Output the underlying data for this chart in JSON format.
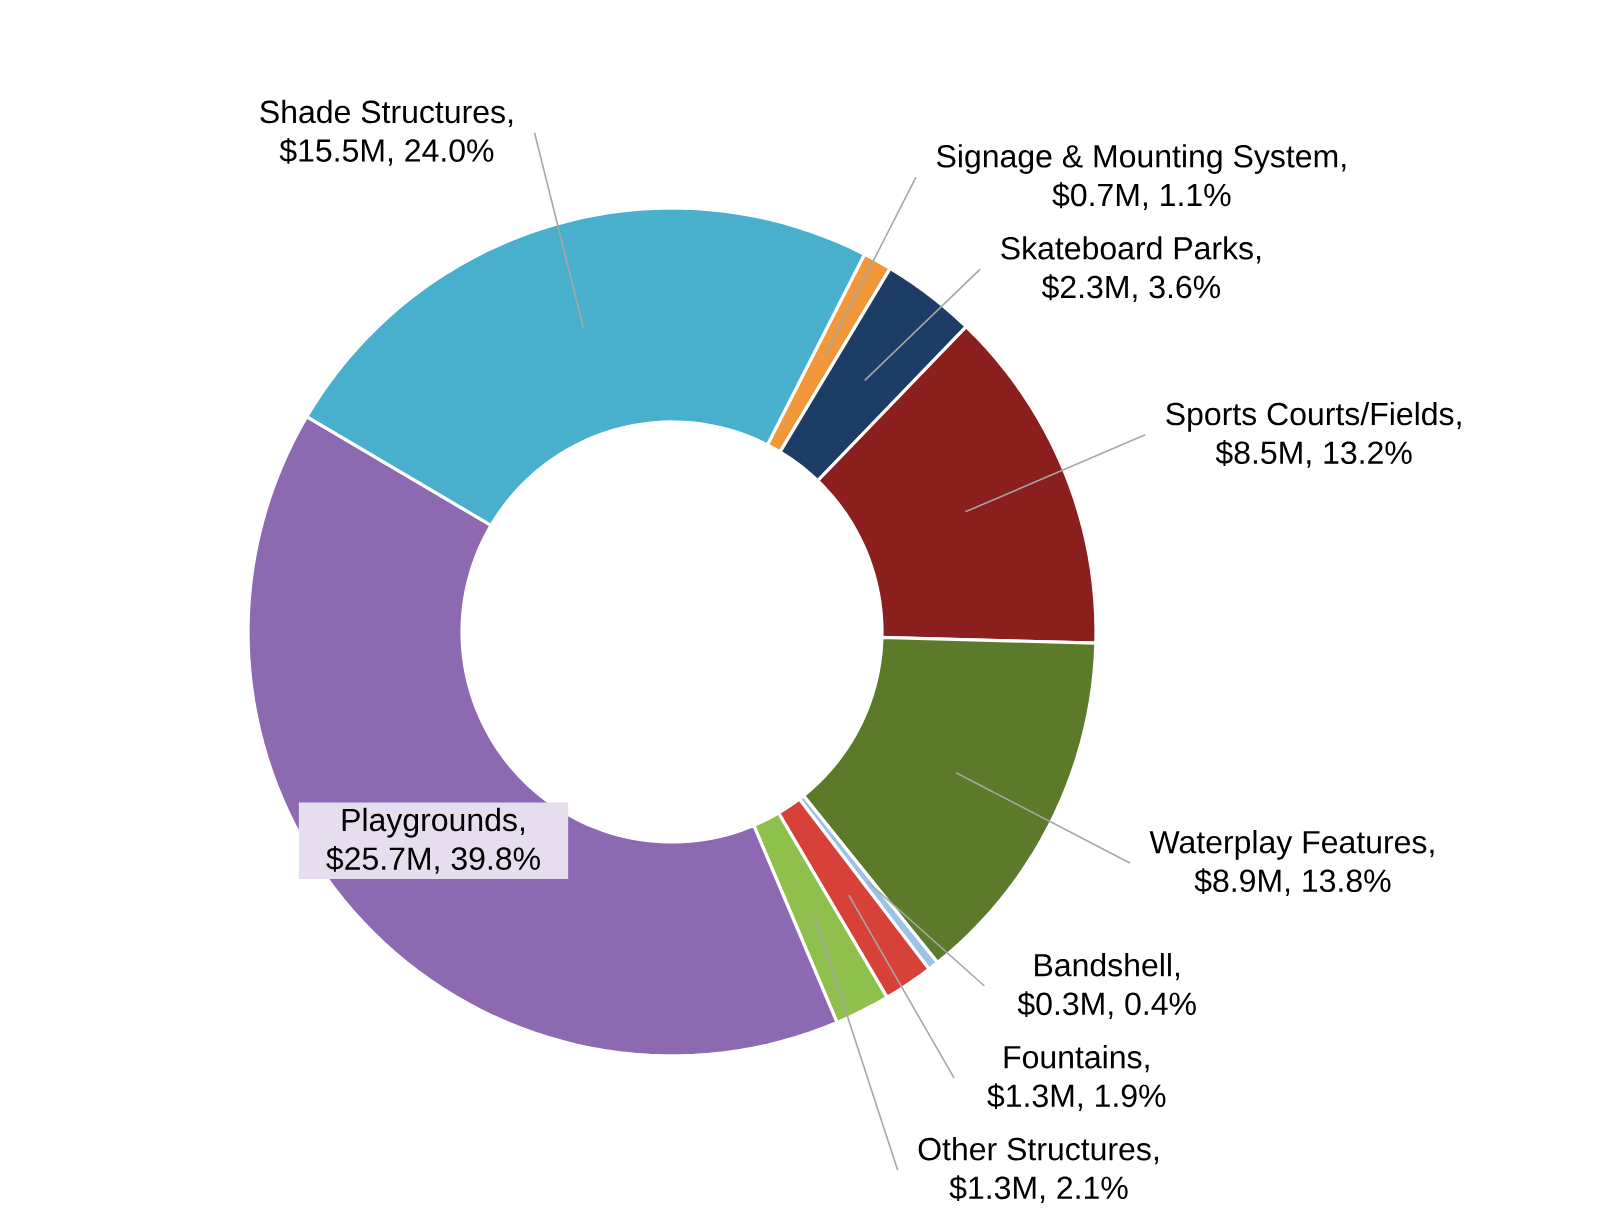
{
  "chart_data": {
    "type": "donut",
    "categories": [
      "Signage & Mounting System",
      "Skateboard Parks",
      "Sports Courts/Fields",
      "Waterplay Features",
      "Bandshell",
      "Fountains",
      "Other Structures",
      "Playgrounds",
      "Shade Structures"
    ],
    "values": [
      1.1,
      3.6,
      13.2,
      13.8,
      0.4,
      1.9,
      2.1,
      39.8,
      24.0
    ],
    "value_labels": [
      ", $0.7M, 1.1%",
      ", $2.3M, 3.6%",
      ", $8.5M, 13.2%",
      ", $8.9M, 13.8%",
      ", $0.3M, 0.4%",
      ", $1.3M, 1.9%",
      ", $1.3M, 2.1%",
      ", $25.7M, 39.8%",
      ", $15.5M, 24.0%"
    ],
    "colors": [
      "#f0983a",
      "#1e3d66",
      "#8a1f1d",
      "#5b7a2a",
      "#9cc3e4",
      "#d8403a",
      "#8fc04c",
      "#8c69b0",
      "#48afcd"
    ]
  }
}
